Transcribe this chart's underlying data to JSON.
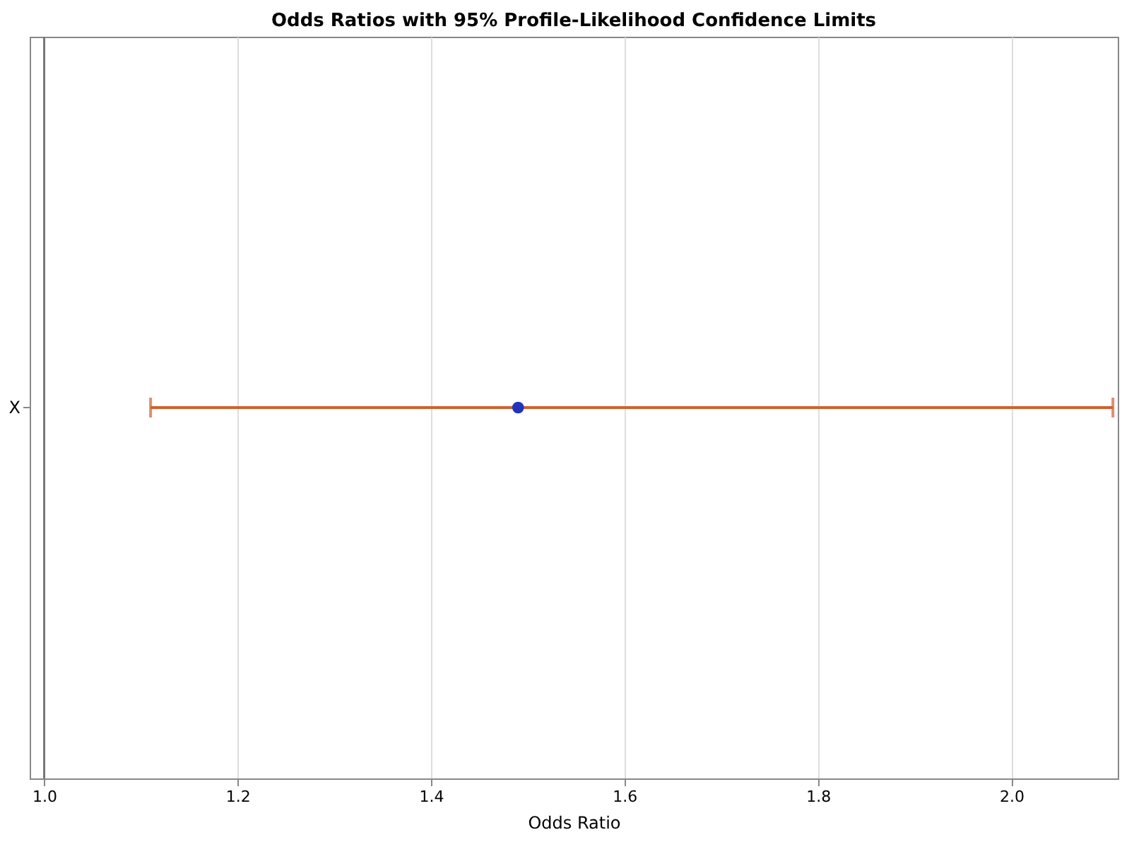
{
  "chart_data": {
    "type": "scatter",
    "orientation": "horizontal",
    "title": "Odds Ratios with 95% Profile-Likelihood Confidence Limits",
    "xlabel": "Odds Ratio",
    "categories": [
      "X"
    ],
    "series": [
      {
        "color": "#2233bb",
        "values": [
          1.49
        ],
        "errors": [
          [
            1.11,
            2.105
          ]
        ]
      }
    ],
    "xlim": [
      0.985,
      2.11
    ],
    "xticks": [
      {
        "value": 1.0,
        "label": "1.0"
      },
      1.2,
      1.4,
      1.6,
      1.8,
      {
        "value": 2.0,
        "label": "2.0"
      }
    ],
    "ref_lines": [
      {
        "axis": "x",
        "value": 1.0,
        "color": "#777777"
      }
    ],
    "grid": "x",
    "marker": "circle"
  }
}
